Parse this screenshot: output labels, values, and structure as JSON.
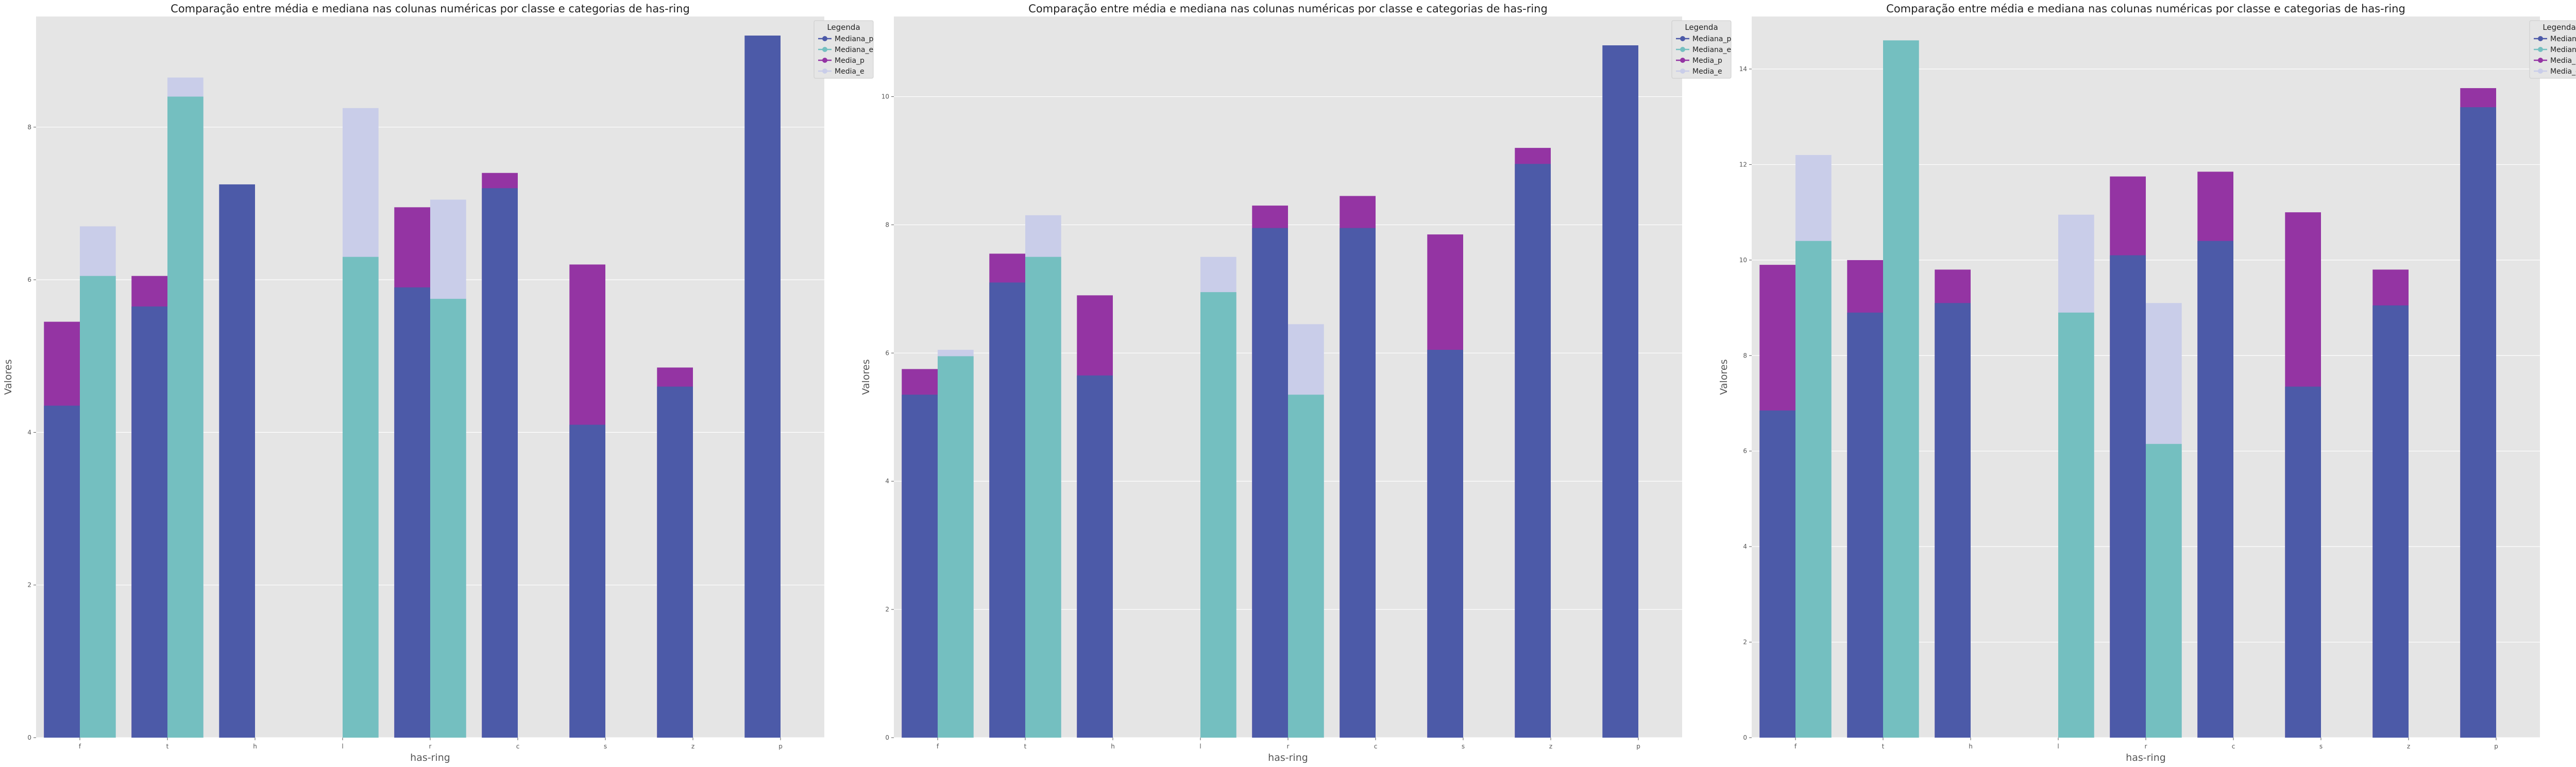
{
  "colors": {
    "Mediana_p": "#4c5aa8",
    "Mediana_e": "#74bfc0",
    "Media_p": "#9434a3",
    "Media_e": "#c9cde9",
    "panel_bg": "#e5e5e5",
    "grid": "#ffffff"
  },
  "chart_data": [
    {
      "type": "bar",
      "title": "Comparação entre média e mediana nas colunas numéricas por classe e categorias de has-ring",
      "xlabel": "has-ring",
      "ylabel": "Valores",
      "categories": [
        "f",
        "t",
        "h",
        "l",
        "r",
        "c",
        "s",
        "z",
        "p"
      ],
      "ylim": [
        0,
        9.45
      ],
      "yticks": [
        0,
        2,
        4,
        6,
        8
      ],
      "grid": true,
      "legend": {
        "title": "Legenda",
        "position": "top-right",
        "entries": [
          "Mediana_p",
          "Mediana_e",
          "Media_p",
          "Media_e"
        ]
      },
      "series": [
        {
          "name": "Mediana_p",
          "values": [
            4.35,
            5.65,
            7.25,
            null,
            5.9,
            7.2,
            4.1,
            4.6,
            9.2
          ]
        },
        {
          "name": "Mediana_e",
          "values": [
            6.05,
            8.4,
            null,
            6.3,
            5.75,
            null,
            null,
            null,
            null
          ]
        },
        {
          "name": "Media_p",
          "values": [
            5.45,
            6.05,
            null,
            null,
            6.95,
            7.4,
            6.2,
            4.85,
            null
          ]
        },
        {
          "name": "Media_e",
          "values": [
            6.7,
            8.65,
            null,
            8.25,
            7.05,
            null,
            null,
            null,
            null
          ]
        }
      ]
    },
    {
      "type": "bar",
      "title": "Comparação entre média e mediana nas colunas numéricas por classe e categorias de has-ring",
      "xlabel": "has-ring",
      "ylabel": "Valores",
      "categories": [
        "f",
        "t",
        "h",
        "l",
        "r",
        "c",
        "s",
        "z",
        "p"
      ],
      "ylim": [
        0,
        11.25
      ],
      "yticks": [
        0,
        2,
        4,
        6,
        8,
        10
      ],
      "grid": true,
      "legend": {
        "title": "Legenda",
        "position": "top-right",
        "entries": [
          "Mediana_p",
          "Mediana_e",
          "Media_p",
          "Media_e"
        ]
      },
      "series": [
        {
          "name": "Mediana_p",
          "values": [
            5.35,
            7.1,
            5.65,
            null,
            7.95,
            7.95,
            6.05,
            8.95,
            10.8
          ]
        },
        {
          "name": "Mediana_e",
          "values": [
            5.95,
            7.5,
            null,
            6.95,
            5.35,
            null,
            null,
            null,
            null
          ]
        },
        {
          "name": "Media_p",
          "values": [
            5.75,
            7.55,
            6.9,
            null,
            8.3,
            8.45,
            7.85,
            9.2,
            null
          ]
        },
        {
          "name": "Media_e",
          "values": [
            6.05,
            8.15,
            null,
            7.5,
            6.45,
            null,
            null,
            null,
            null
          ]
        }
      ]
    },
    {
      "type": "bar",
      "title": "Comparação entre média e mediana nas colunas numéricas por classe e categorias de has-ring",
      "xlabel": "has-ring",
      "ylabel": "Valores",
      "categories": [
        "f",
        "t",
        "h",
        "l",
        "r",
        "c",
        "s",
        "z",
        "p"
      ],
      "ylim": [
        0,
        15.1
      ],
      "yticks": [
        0,
        2,
        4,
        6,
        8,
        10,
        12,
        14
      ],
      "grid": true,
      "legend": {
        "title": "Legenda",
        "position": "top-right",
        "entries": [
          "Mediana_p",
          "Mediana_e",
          "Media_p",
          "Media_e"
        ]
      },
      "series": [
        {
          "name": "Mediana_p",
          "values": [
            6.85,
            8.9,
            9.1,
            null,
            10.1,
            10.4,
            7.35,
            9.05,
            13.2
          ]
        },
        {
          "name": "Mediana_e",
          "values": [
            10.4,
            14.6,
            null,
            8.9,
            6.15,
            null,
            null,
            null,
            null
          ]
        },
        {
          "name": "Media_p",
          "values": [
            9.9,
            10.0,
            9.8,
            null,
            11.75,
            11.85,
            11.0,
            9.8,
            13.6
          ]
        },
        {
          "name": "Media_e",
          "values": [
            12.2,
            null,
            null,
            10.95,
            9.1,
            null,
            null,
            null,
            null
          ]
        }
      ]
    }
  ]
}
